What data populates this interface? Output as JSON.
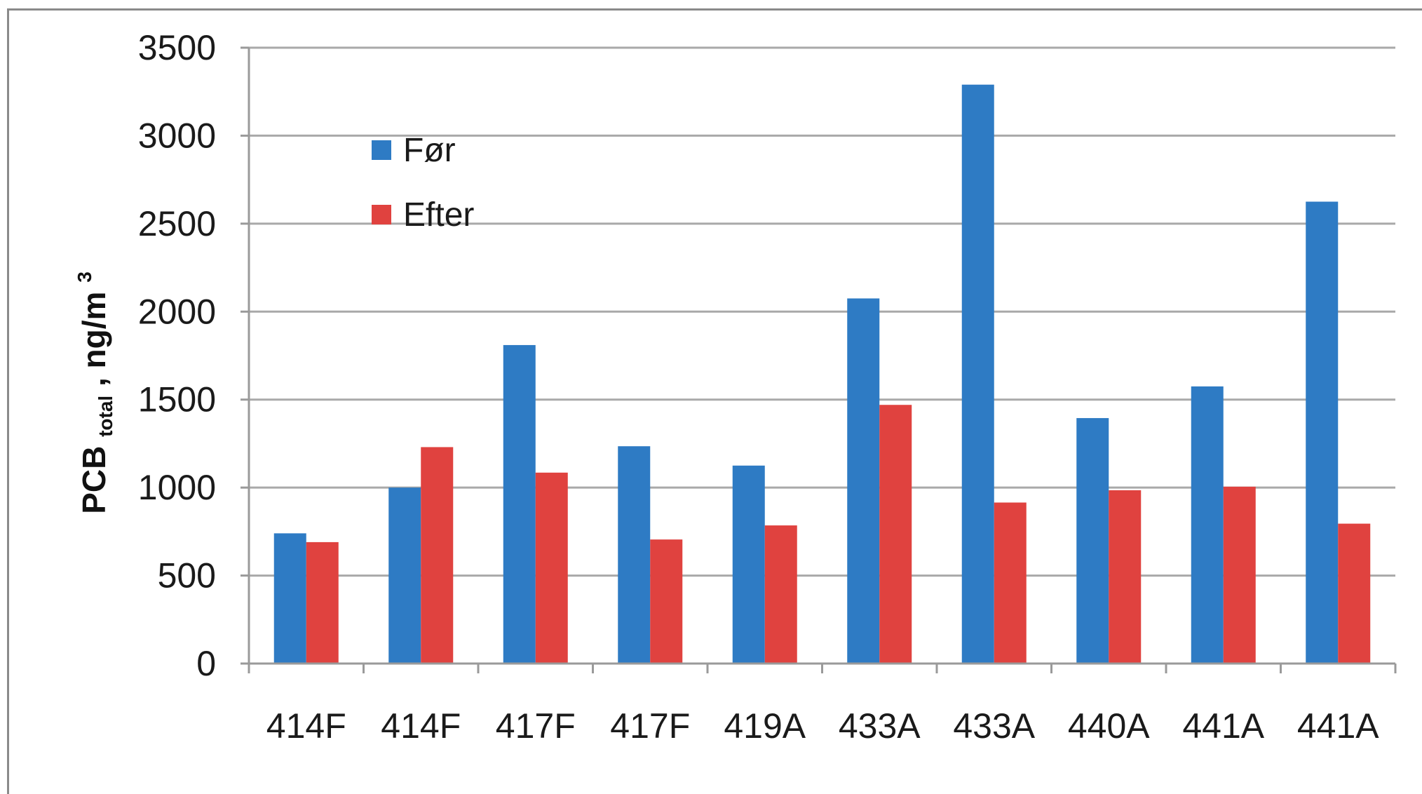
{
  "chart_data": {
    "type": "bar",
    "categories": [
      "414F",
      "414F",
      "417F",
      "417F",
      "419A",
      "433A",
      "433A",
      "440A",
      "441A",
      "441A"
    ],
    "series": [
      {
        "name": "Før",
        "color": "#2e7bc4",
        "values": [
          740,
          1000,
          1810,
          1235,
          1125,
          2075,
          3290,
          1395,
          1575,
          2625
        ]
      },
      {
        "name": "Efter",
        "color": "#e0423f",
        "values": [
          690,
          1230,
          1085,
          705,
          785,
          1470,
          915,
          985,
          1005,
          795
        ]
      }
    ],
    "ylabel_main": "PCB",
    "ylabel_sub": "total",
    "ylabel_unit": ", ng/m",
    "ylabel_sup": "3",
    "ylim": [
      0,
      3500
    ],
    "yticks": [
      0,
      500,
      1000,
      1500,
      2000,
      2500,
      3000,
      3500
    ],
    "grid": true,
    "legend_position": "top-left inside"
  }
}
